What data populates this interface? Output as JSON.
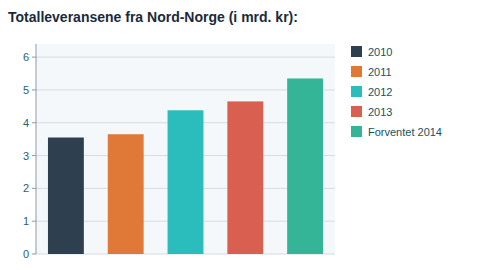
{
  "chart_data": {
    "type": "bar",
    "title": "Totalleveransene fra Nord-Norge (i mrd. kr):",
    "categories": [
      "2010",
      "2011",
      "2012",
      "2013",
      "Forventet 2014"
    ],
    "values": [
      3.55,
      3.65,
      4.38,
      4.65,
      5.35
    ],
    "colors": [
      "#2e3f50",
      "#e07838",
      "#2bbcbc",
      "#d96050",
      "#35b598"
    ],
    "ylim": [
      0,
      6.4
    ],
    "yticks": [
      0,
      1,
      2,
      3,
      4,
      5,
      6
    ],
    "grid": true,
    "legend": "right",
    "tick_labels": "y"
  }
}
